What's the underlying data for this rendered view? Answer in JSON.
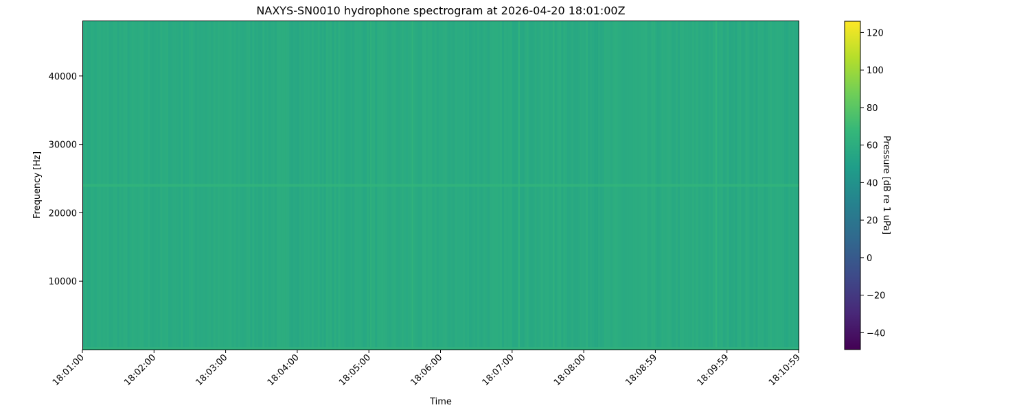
{
  "chart_data": {
    "type": "heatmap",
    "title": "NAXYS-SN0010 hydrophone spectrogram at 2026-04-20 18:01:00Z",
    "xlabel": "Time",
    "ylabel": "Frequency [Hz]",
    "colorbar_label": "Pressure [dB re 1 uPa]",
    "colormap": "viridis",
    "x_range": [
      "18:01:00",
      "18:10:59"
    ],
    "ylim": [
      0,
      48000
    ],
    "clim": [
      -49,
      126
    ],
    "x_ticks": [
      "18:01:00",
      "18:02:00",
      "18:03:00",
      "18:04:00",
      "18:05:00",
      "18:06:00",
      "18:07:00",
      "18:08:00",
      "18:08:59",
      "18:09:59",
      "18:10:59"
    ],
    "y_ticks": [
      10000,
      20000,
      30000,
      40000
    ],
    "y_tick_labels": [
      "10000",
      "20000",
      "30000",
      "40000"
    ],
    "colorbar_ticks": [
      -40,
      -20,
      0,
      20,
      40,
      60,
      80,
      100,
      120
    ],
    "colorbar_tick_labels": [
      "−40",
      "−20",
      "0",
      "20",
      "40",
      "60",
      "80",
      "100",
      "120"
    ],
    "background_level_db": 58,
    "tonal_lines": [
      {
        "frequency_hz": 24000,
        "level_db": 66
      },
      {
        "frequency_hz": 200,
        "level_db": 64
      }
    ],
    "broadband_events": [
      {
        "time": "18:05:01",
        "level_db": 64
      },
      {
        "time": "18:05:36",
        "level_db": 65
      },
      {
        "time": "18:07:05",
        "level_db": 65
      },
      {
        "time": "18:07:34",
        "level_db": 64
      },
      {
        "time": "18:09:50",
        "level_db": 66
      }
    ]
  }
}
